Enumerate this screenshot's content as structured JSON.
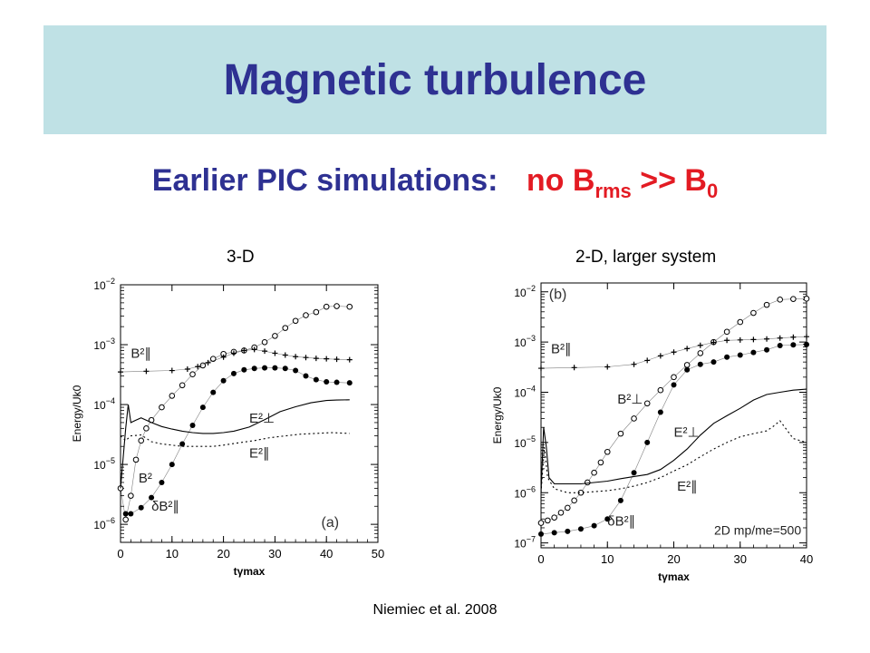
{
  "slide": {
    "title": "Magnetic turbulence",
    "subtitle_lead": "Earlier PIC simulations:",
    "subtitle_claim": {
      "base1": "no B",
      "sub1": "rms",
      "middle": " >> B",
      "sub2": "0"
    },
    "citation": "Niemiec et al. 2008"
  },
  "chart_data": [
    {
      "type": "line",
      "heading": "3-D",
      "panel_tag": "(a)",
      "xlabel": "tγmax",
      "ylabel": "Energy/Uk0",
      "yscale": "log",
      "xlim": [
        0,
        50
      ],
      "ylim": [
        5e-07,
        0.01
      ],
      "xticks": [
        0,
        10,
        20,
        30,
        40,
        50
      ],
      "yticks": [
        {
          "value": 0.01,
          "base": "10",
          "exp": "−2"
        },
        {
          "value": 0.001,
          "base": "10",
          "exp": "−3"
        },
        {
          "value": 0.0001,
          "base": "10",
          "exp": "−4"
        },
        {
          "value": 1e-05,
          "base": "10",
          "exp": "−5"
        },
        {
          "value": 1e-06,
          "base": "10",
          "exp": "−6"
        }
      ],
      "series": [
        {
          "name": "B²",
          "style": "circles",
          "color": "#000000",
          "x": [
            0,
            1,
            2,
            3,
            4,
            5,
            6,
            8,
            10,
            12,
            14,
            16,
            18,
            20,
            22,
            24,
            26,
            28,
            30,
            32,
            34,
            36,
            38,
            40,
            42,
            44.5
          ],
          "y": [
            4e-06,
            1.2e-06,
            3e-06,
            1.2e-05,
            2.5e-05,
            4e-05,
            5.5e-05,
            9e-05,
            0.00014,
            0.00021,
            0.00032,
            0.00045,
            0.00058,
            0.0007,
            0.00076,
            0.0008,
            0.0009,
            0.0011,
            0.0014,
            0.0019,
            0.0025,
            0.0031,
            0.0035,
            0.0043,
            0.0044,
            0.0043
          ]
        },
        {
          "name": "B²∥",
          "style": "crosses",
          "color": "#000000",
          "x": [
            0,
            5,
            10,
            13,
            15,
            17,
            20,
            22,
            24,
            26,
            28,
            30,
            32,
            34,
            36,
            38,
            40,
            42,
            44.5
          ],
          "y": [
            0.00035,
            0.00036,
            0.00037,
            0.00039,
            0.00043,
            0.0005,
            0.00062,
            0.00072,
            0.0008,
            0.00083,
            0.00078,
            0.00072,
            0.00067,
            0.00063,
            0.00061,
            0.00059,
            0.00058,
            0.00057,
            0.00056
          ]
        },
        {
          "name": "δB²∥",
          "style": "dots",
          "color": "#000000",
          "x": [
            1,
            2,
            4,
            6,
            8,
            10,
            12,
            14,
            16,
            18,
            20,
            22,
            24,
            26,
            28,
            30,
            32,
            34,
            36,
            38,
            40,
            42,
            44.5
          ],
          "y": [
            1.5e-06,
            1.5e-06,
            1.9e-06,
            2.8e-06,
            5e-06,
            1e-05,
            2.2e-05,
            4.5e-05,
            9e-05,
            0.00016,
            0.00025,
            0.00033,
            0.00038,
            0.0004,
            0.00041,
            0.00041,
            0.0004,
            0.00037,
            0.0003,
            0.00026,
            0.00024,
            0.000235,
            0.00023
          ]
        },
        {
          "name": "E²⊥",
          "style": "solid",
          "color": "#000000",
          "x": [
            0,
            1,
            1.5,
            2,
            3,
            4,
            6,
            8,
            10,
            12,
            14,
            16,
            18,
            20,
            22,
            25,
            28,
            31,
            34,
            37,
            40,
            42,
            44.5
          ],
          "y": [
            4e-06,
            4e-05,
            0.0001,
            5e-05,
            5.5e-05,
            6e-05,
            5e-05,
            4.3e-05,
            3.9e-05,
            3.6e-05,
            3.4e-05,
            3.3e-05,
            3.3e-05,
            3.4e-05,
            3.6e-05,
            4.2e-05,
            5.6e-05,
            7.6e-05,
            9.2e-05,
            0.000107,
            0.000117,
            0.000119,
            0.00012
          ]
        },
        {
          "name": "E²∥",
          "style": "dotted",
          "color": "#000000",
          "x": [
            0,
            1,
            2,
            4,
            6,
            8,
            10,
            12,
            14,
            16,
            18,
            20,
            23,
            26,
            29,
            32,
            35,
            38,
            41,
            44.5
          ],
          "y": [
            3e-05,
            2.5e-05,
            3e-05,
            3.1e-05,
            2.4e-05,
            2.2e-05,
            2.1e-05,
            2e-05,
            2e-05,
            2e-05,
            2e-05,
            2.1e-05,
            2.3e-05,
            2.5e-05,
            2.8e-05,
            3e-05,
            3.2e-05,
            3.3e-05,
            3.4e-05,
            3.3e-05
          ]
        }
      ],
      "annotations": [
        {
          "text": "B²∥",
          "x": 2,
          "y": 0.0006
        },
        {
          "text": "E²⊥",
          "x": 25,
          "y": 5e-05
        },
        {
          "text": "E²∥",
          "x": 25,
          "y": 1.3e-05
        },
        {
          "text": "B²",
          "x": 3.5,
          "y": 5e-06
        },
        {
          "text": "δB²∥",
          "x": 6,
          "y": 1.7e-06
        }
      ]
    },
    {
      "type": "line",
      "heading": "2-D, larger system",
      "panel_tag": "(b)",
      "note": "2D  mp/me=500",
      "xlabel": "tγmax",
      "ylabel": "Energy/Uk0",
      "yscale": "log",
      "xlim": [
        0,
        40
      ],
      "ylim": [
        8e-08,
        0.015
      ],
      "xticks": [
        0,
        10,
        20,
        30,
        40
      ],
      "yticks": [
        {
          "value": 0.01,
          "base": "10",
          "exp": "−2"
        },
        {
          "value": 0.001,
          "base": "10",
          "exp": "−3"
        },
        {
          "value": 0.0001,
          "base": "10",
          "exp": "−4"
        },
        {
          "value": 1e-05,
          "base": "10",
          "exp": "−5"
        },
        {
          "value": 1e-06,
          "base": "10",
          "exp": "−6"
        },
        {
          "value": 1e-07,
          "base": "10",
          "exp": "−7"
        }
      ],
      "series": [
        {
          "name": "B²⊥",
          "style": "circles",
          "color": "#000000",
          "x": [
            0,
            1,
            2,
            3,
            4,
            5,
            6,
            7,
            8,
            9,
            10,
            12,
            14,
            16,
            18,
            20,
            22,
            24,
            26,
            28,
            30,
            32,
            34,
            36,
            38,
            40
          ],
          "y": [
            2.5e-07,
            2.8e-07,
            3.2e-07,
            4e-07,
            5e-07,
            7e-07,
            1e-06,
            1.6e-06,
            2.5e-06,
            4e-06,
            6.5e-06,
            1.5e-05,
            3e-05,
            6e-05,
            0.00011,
            0.0002,
            0.00035,
            0.0006,
            0.001,
            0.0016,
            0.0025,
            0.0038,
            0.0055,
            0.007,
            0.0072,
            0.0073
          ]
        },
        {
          "name": "B²∥",
          "style": "crosses",
          "color": "#000000",
          "x": [
            0,
            5,
            10,
            14,
            16,
            18,
            20,
            22,
            24,
            26,
            28,
            30,
            32,
            34,
            36,
            38,
            40
          ],
          "y": [
            0.0003,
            0.00031,
            0.00032,
            0.00036,
            0.00043,
            0.00053,
            0.00063,
            0.00074,
            0.00086,
            0.00098,
            0.00108,
            0.0011,
            0.00112,
            0.00115,
            0.0012,
            0.00125,
            0.00128
          ]
        },
        {
          "name": "δB²∥",
          "style": "dots",
          "color": "#000000",
          "x": [
            0,
            2,
            4,
            6,
            8,
            10,
            12,
            14,
            16,
            18,
            20,
            22,
            24,
            26,
            28,
            30,
            32,
            34,
            36,
            38,
            40
          ],
          "y": [
            1.5e-07,
            1.6e-07,
            1.7e-07,
            1.9e-07,
            2.2e-07,
            3e-07,
            7e-07,
            2.5e-06,
            1e-05,
            4e-05,
            0.00014,
            0.00028,
            0.00036,
            0.0004,
            0.0005,
            0.00055,
            0.00062,
            0.0007,
            0.00085,
            0.00088,
            0.00089
          ]
        },
        {
          "name": "E²⊥",
          "style": "solid",
          "color": "#000000",
          "x": [
            0,
            0.4,
            0.8,
            1.2,
            2,
            4,
            6,
            8,
            10,
            12,
            14,
            16,
            18,
            20,
            22,
            24,
            26,
            28,
            30,
            32,
            34,
            36,
            38,
            40
          ],
          "y": [
            1e-06,
            2e-05,
            8e-06,
            2e-06,
            1.5e-06,
            1.5e-06,
            1.5e-06,
            1.6e-06,
            1.7e-06,
            1.9e-06,
            2.1e-06,
            2.3e-06,
            2.9e-06,
            4.4e-06,
            7.4e-06,
            1.4e-05,
            2.4e-05,
            3.4e-05,
            4.8e-05,
            7e-05,
            9e-05,
            0.0001,
            0.00011,
            0.000115
          ]
        },
        {
          "name": "E²∥",
          "style": "dotted",
          "color": "#000000",
          "x": [
            0,
            0.5,
            1,
            2,
            4,
            6,
            8,
            10,
            12,
            14,
            16,
            18,
            20,
            22,
            24,
            26,
            28,
            30,
            32,
            34,
            35,
            36,
            37,
            38,
            40
          ],
          "y": [
            1e-06,
            8e-06,
            2e-06,
            1.2e-06,
            1e-06,
            1e-06,
            1.05e-06,
            1.1e-06,
            1.2e-06,
            1.35e-06,
            1.6e-06,
            2e-06,
            2.7e-06,
            3.6e-06,
            5.2e-06,
            7.4e-06,
            1e-05,
            1.3e-05,
            1.5e-05,
            1.7e-05,
            2.1e-05,
            2.7e-05,
            1.8e-05,
            1.2e-05,
            1e-05
          ]
        }
      ],
      "annotations": [
        {
          "text": "B²∥",
          "x": 1.5,
          "y": 0.0006
        },
        {
          "text": "B²⊥",
          "x": 11.5,
          "y": 6e-05
        },
        {
          "text": "E²⊥",
          "x": 20,
          "y": 1.3e-05
        },
        {
          "text": "E²∥",
          "x": 20.5,
          "y": 1.1e-06
        },
        {
          "text": "δB²∥",
          "x": 10,
          "y": 2.2e-07
        }
      ]
    }
  ]
}
